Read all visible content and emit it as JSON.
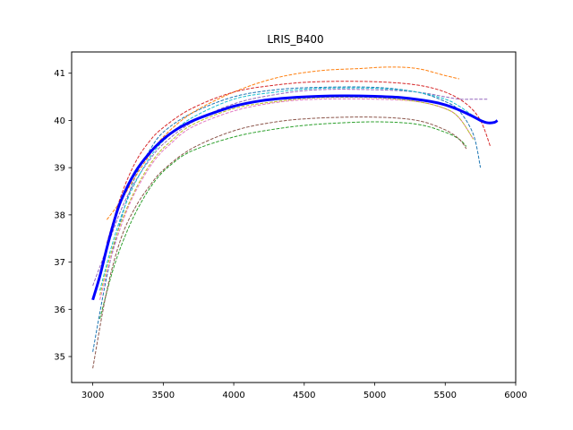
{
  "chart_data": {
    "type": "line",
    "title": "LRIS_B400",
    "xlabel": "",
    "ylabel": "",
    "xlim": [
      2850,
      6000
    ],
    "ylim": [
      34.45,
      41.45
    ],
    "xticks": [
      3000,
      3500,
      4000,
      4500,
      5000,
      5500,
      6000
    ],
    "yticks": [
      35,
      36,
      37,
      38,
      39,
      40,
      41
    ],
    "grid": false,
    "legend": "none",
    "series": [
      {
        "color": "#1f77b4",
        "style": "dashed",
        "x": [
          3000,
          3100,
          3200,
          3300,
          3400,
          3500,
          3700,
          4000,
          4300,
          4600,
          5000,
          5300,
          5500,
          5600,
          5700,
          5750
        ],
        "y": [
          35.1,
          36.7,
          37.9,
          38.8,
          39.35,
          39.75,
          40.15,
          40.5,
          40.65,
          40.7,
          40.7,
          40.6,
          40.4,
          40.2,
          39.7,
          39.0
        ]
      },
      {
        "color": "#ff7f0e",
        "style": "dashed",
        "x": [
          3100,
          3200,
          3300,
          3400,
          3500,
          3700,
          4000,
          4300,
          4600,
          4900,
          5100,
          5300,
          5500,
          5600
        ],
        "y": [
          37.9,
          38.3,
          38.8,
          39.25,
          39.65,
          40.15,
          40.6,
          40.9,
          41.05,
          41.1,
          41.13,
          41.1,
          40.95,
          40.88
        ]
      },
      {
        "color": "#2ca02c",
        "style": "dashed",
        "x": [
          3050,
          3150,
          3250,
          3350,
          3450,
          3550,
          3700,
          4000,
          4300,
          4600,
          5000,
          5300,
          5500,
          5600,
          5650
        ],
        "y": [
          35.8,
          36.9,
          37.7,
          38.3,
          38.75,
          39.05,
          39.35,
          39.65,
          39.82,
          39.92,
          39.97,
          39.92,
          39.75,
          39.6,
          39.45
        ]
      },
      {
        "color": "#d62728",
        "style": "dashed",
        "x": [
          3100,
          3200,
          3300,
          3400,
          3500,
          3700,
          4000,
          4300,
          4600,
          5000,
          5300,
          5500,
          5650,
          5750,
          5820
        ],
        "y": [
          37.4,
          38.4,
          39.1,
          39.55,
          39.85,
          40.25,
          40.6,
          40.75,
          40.82,
          40.82,
          40.75,
          40.6,
          40.35,
          40.0,
          39.45
        ]
      },
      {
        "color": "#9467bd",
        "style": "dashed",
        "x": [
          3000,
          3100,
          3200,
          3300,
          3400,
          3500,
          3700,
          4000,
          4300,
          4600,
          5000,
          5300,
          5500,
          5600,
          5700,
          5800
        ],
        "y": [
          36.5,
          37.3,
          38.1,
          38.7,
          39.15,
          39.5,
          39.95,
          40.35,
          40.55,
          40.65,
          40.65,
          40.6,
          40.5,
          40.45,
          40.45,
          40.45
        ]
      },
      {
        "color": "#8c564b",
        "style": "dashed",
        "x": [
          3000,
          3100,
          3200,
          3300,
          3400,
          3500,
          3700,
          4000,
          4300,
          4600,
          5000,
          5300,
          5500,
          5600,
          5650
        ],
        "y": [
          34.75,
          36.4,
          37.5,
          38.15,
          38.6,
          38.95,
          39.4,
          39.78,
          39.97,
          40.05,
          40.07,
          40.0,
          39.8,
          39.6,
          39.4
        ]
      },
      {
        "color": "#e377c2",
        "style": "dashed",
        "x": [
          3050,
          3150,
          3250,
          3350,
          3450,
          3550,
          3700,
          4000,
          4300,
          4600,
          5000,
          5300,
          5500,
          5600,
          5700
        ],
        "y": [
          36.2,
          37.3,
          38.15,
          38.75,
          39.2,
          39.5,
          39.85,
          40.2,
          40.38,
          40.45,
          40.45,
          40.4,
          40.25,
          40.05,
          39.6
        ]
      },
      {
        "color": "#bcbd22",
        "style": "dashed",
        "x": [
          3050,
          3150,
          3250,
          3350,
          3450,
          3550,
          3700,
          4000,
          4300,
          4600,
          5000,
          5300,
          5500,
          5600,
          5700
        ],
        "y": [
          36.3,
          37.4,
          38.2,
          38.8,
          39.25,
          39.55,
          39.9,
          40.25,
          40.4,
          40.48,
          40.48,
          40.4,
          40.25,
          40.05,
          39.6
        ]
      },
      {
        "color": "#17becf",
        "style": "dashed",
        "x": [
          3050,
          3150,
          3250,
          3350,
          3450,
          3550,
          3700,
          4000,
          4300,
          4600,
          5000,
          5300,
          5500,
          5600,
          5700,
          5800
        ],
        "y": [
          36.4,
          37.5,
          38.35,
          38.95,
          39.4,
          39.7,
          40.05,
          40.45,
          40.6,
          40.68,
          40.68,
          40.6,
          40.45,
          40.3,
          40.1,
          39.95
        ]
      },
      {
        "color": "#0000ff",
        "style": "solid",
        "width": 3,
        "x": [
          3000,
          3050,
          3100,
          3150,
          3200,
          3300,
          3400,
          3500,
          3600,
          3700,
          3800,
          4000,
          4200,
          4400,
          4600,
          4800,
          5000,
          5200,
          5400,
          5500,
          5600,
          5700,
          5750,
          5800,
          5850,
          5870
        ],
        "y": [
          36.2,
          36.7,
          37.3,
          37.85,
          38.3,
          38.9,
          39.3,
          39.6,
          39.82,
          39.98,
          40.1,
          40.3,
          40.42,
          40.48,
          40.51,
          40.52,
          40.51,
          40.48,
          40.4,
          40.33,
          40.22,
          40.08,
          40.0,
          39.95,
          39.96,
          40.0
        ]
      }
    ]
  }
}
